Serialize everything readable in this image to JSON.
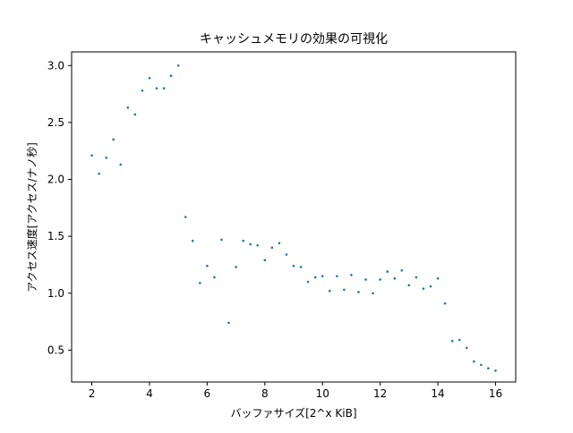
{
  "chart_data": {
    "type": "scatter",
    "title": "キャッシュメモリの効果の可視化",
    "xlabel": "バッファサイズ[2^x KiB]",
    "ylabel": "アクセス速度[アクセス/ナノ秒]",
    "xlim": [
      1.3,
      16.7
    ],
    "ylim": [
      0.22,
      3.12
    ],
    "xticks": [
      2,
      4,
      6,
      8,
      10,
      12,
      14,
      16
    ],
    "xtick_labels": [
      "2",
      "4",
      "6",
      "8",
      "10",
      "12",
      "14",
      "16"
    ],
    "yticks": [
      0.5,
      1.0,
      1.5,
      2.0,
      2.5,
      3.0
    ],
    "ytick_labels": [
      "0.5",
      "1.0",
      "1.5",
      "2.0",
      "2.5",
      "3.0"
    ],
    "grid": false,
    "legend": false,
    "marker_color": "#1f77b4",
    "x": [
      2,
      2.25,
      2.5,
      2.75,
      3,
      3.25,
      3.5,
      3.75,
      4,
      4.25,
      4.5,
      4.75,
      5,
      5.25,
      5.5,
      5.75,
      6,
      6.25,
      6.5,
      6.75,
      7,
      7.25,
      7.5,
      7.75,
      8,
      8.25,
      8.5,
      8.75,
      9,
      9.25,
      9.5,
      9.75,
      10,
      10.25,
      10.5,
      10.75,
      11,
      11.25,
      11.5,
      11.75,
      12,
      12.25,
      12.5,
      12.75,
      13,
      13.25,
      13.5,
      13.75,
      14,
      14.25,
      14.5,
      14.75,
      15,
      15.25,
      15.5,
      15.75,
      16
    ],
    "y": [
      2.21,
      2.05,
      2.19,
      2.35,
      2.13,
      2.63,
      2.57,
      2.78,
      2.89,
      2.8,
      2.8,
      2.91,
      3.0,
      1.67,
      1.46,
      1.09,
      1.24,
      1.14,
      1.47,
      0.74,
      1.23,
      1.46,
      1.43,
      1.42,
      1.29,
      1.4,
      1.44,
      1.34,
      1.24,
      1.23,
      1.1,
      1.14,
      1.15,
      1.02,
      1.15,
      1.03,
      1.16,
      1.01,
      1.12,
      1.0,
      1.12,
      1.19,
      1.13,
      1.2,
      1.07,
      1.14,
      1.04,
      1.06,
      1.13,
      0.91,
      0.58,
      0.59,
      0.52,
      0.4,
      0.37,
      0.34,
      0.32
    ]
  }
}
